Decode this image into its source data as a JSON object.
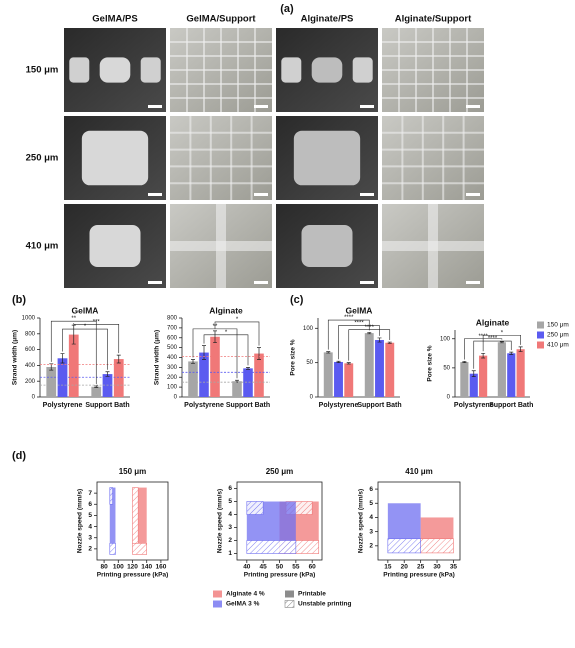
{
  "panels": [
    "(a)",
    "(b)",
    "(c)",
    "(d)"
  ],
  "micrographs": {
    "columns": [
      "GelMA/PS",
      "GelMA/Support",
      "Alginate/PS",
      "Alginate/Support"
    ],
    "rows": [
      "150 μm",
      "250 μm",
      "410 μm"
    ]
  },
  "chart_data": [
    {
      "type": "bar",
      "title": "GelMA",
      "ylabel": "Strand width (μm)",
      "categories": [
        "Polystyrene",
        "Support Bath"
      ],
      "ylim": [
        0,
        1000
      ],
      "yticks": [
        0,
        200,
        400,
        600,
        800,
        1000
      ],
      "reference_lines": [
        150,
        250,
        410
      ],
      "series": [
        {
          "color": "#a6a6a6",
          "values": [
            380,
            130
          ],
          "errors": [
            40,
            10
          ]
        },
        {
          "color": "#5b5bf0",
          "values": [
            490,
            290
          ],
          "errors": [
            60,
            30
          ]
        },
        {
          "color": "#f07878",
          "values": [
            790,
            480
          ],
          "errors": [
            120,
            50
          ]
        }
      ],
      "annotations": [
        {
          "label": "**",
          "from": [
            0,
            0
          ],
          "to": [
            1,
            0
          ],
          "y": 960
        },
        {
          "label": "***",
          "from": [
            0,
            2
          ],
          "to": [
            1,
            2
          ],
          "y": 920
        },
        {
          "label": "*",
          "from": [
            0,
            1
          ],
          "to": [
            1,
            1
          ],
          "y": 860
        }
      ]
    },
    {
      "type": "bar",
      "title": "Alginate",
      "ylabel": "Strand width (μm)",
      "categories": [
        "Polystyrene",
        "Support Bath"
      ],
      "ylim": [
        0,
        800
      ],
      "yticks": [
        0,
        100,
        200,
        300,
        400,
        500,
        600,
        700,
        800
      ],
      "reference_lines": [
        150,
        250,
        410
      ],
      "series": [
        {
          "color": "#a6a6a6",
          "values": [
            360,
            160
          ],
          "errors": [
            20,
            10
          ]
        },
        {
          "color": "#5b5bf0",
          "values": [
            450,
            290
          ],
          "errors": [
            70,
            10
          ]
        },
        {
          "color": "#f07878",
          "values": [
            610,
            440
          ],
          "errors": [
            60,
            60
          ]
        }
      ],
      "annotations": [
        {
          "label": "*",
          "from": [
            0,
            2
          ],
          "to": [
            1,
            2
          ],
          "y": 760
        },
        {
          "label": "**",
          "from": [
            0,
            0
          ],
          "to": [
            1,
            0
          ],
          "y": 690
        },
        {
          "label": "*",
          "from": [
            0,
            1
          ],
          "to": [
            1,
            1
          ],
          "y": 630
        }
      ]
    },
    {
      "type": "bar",
      "title": "GelMA",
      "ylabel": "Pore size %",
      "categories": [
        "Polystyrene",
        "Support Bath"
      ],
      "ylim": [
        0,
        115
      ],
      "yticks": [
        0,
        50,
        100
      ],
      "legend": "right",
      "series": [
        {
          "name": "150 μm",
          "color": "#a6a6a6",
          "values": [
            65,
            93
          ],
          "errors": [
            1,
            1
          ]
        },
        {
          "name": "250 μm",
          "color": "#5b5bf0",
          "values": [
            51,
            83
          ],
          "errors": [
            1,
            3
          ]
        },
        {
          "name": "410 μm",
          "color": "#f07878",
          "values": [
            49,
            79
          ],
          "errors": [
            1,
            1
          ]
        }
      ],
      "annotations": [
        {
          "label": "****",
          "from": [
            0,
            0
          ],
          "to": [
            1,
            0
          ],
          "y": 112
        },
        {
          "label": "****",
          "from": [
            0,
            1
          ],
          "to": [
            1,
            1
          ],
          "y": 104
        },
        {
          "label": "****",
          "from": [
            0,
            2
          ],
          "to": [
            1,
            2
          ],
          "y": 98
        }
      ]
    },
    {
      "type": "bar",
      "title": "Alginate",
      "ylabel": "Pore size %",
      "categories": [
        "Polystyrene",
        "Support Bath"
      ],
      "ylim": [
        0,
        115
      ],
      "yticks": [
        0,
        50,
        100
      ],
      "series": [
        {
          "color": "#a6a6a6",
          "values": [
            60,
            94
          ],
          "errors": [
            1,
            1
          ]
        },
        {
          "color": "#5b5bf0",
          "values": [
            40,
            75
          ],
          "errors": [
            5,
            2
          ]
        },
        {
          "color": "#f07878",
          "values": [
            71,
            82
          ],
          "errors": [
            4,
            4
          ]
        }
      ],
      "annotations": [
        {
          "label": "*",
          "from": [
            0,
            2
          ],
          "to": [
            1,
            2
          ],
          "y": 106
        },
        {
          "label": "****",
          "from": [
            0,
            0
          ],
          "to": [
            1,
            0
          ],
          "y": 100
        },
        {
          "label": "****",
          "from": [
            0,
            1
          ],
          "to": [
            1,
            1
          ],
          "y": 96
        }
      ]
    },
    {
      "type": "region",
      "title": "150 μm",
      "xlabel": "Printing pressure (kPa)",
      "ylabel": "Nozzle speed (mm/s)",
      "xlim": [
        70,
        170
      ],
      "xticks": [
        80,
        100,
        120,
        140,
        160
      ],
      "ylim": [
        1,
        8
      ],
      "yticks": [
        2,
        3,
        4,
        5,
        6,
        7
      ],
      "series": [
        {
          "color": "#f07878",
          "printable": [
            {
              "x": [
                128,
                140
              ],
              "y": [
                2.5,
                7.5
              ]
            }
          ],
          "unstable": [
            {
              "x": [
                120,
                128
              ],
              "y": [
                2.5,
                7.5
              ]
            },
            {
              "x": [
                120,
                140
              ],
              "y": [
                1.5,
                2.5
              ]
            }
          ]
        },
        {
          "color": "#6f6ff0",
          "printable": [
            {
              "x": [
                88,
                96
              ],
              "y": [
                2.5,
                7.5
              ]
            }
          ],
          "unstable": [
            {
              "x": [
                88,
                92
              ],
              "y": [
                6,
                7.5
              ]
            },
            {
              "x": [
                88,
                96
              ],
              "y": [
                1.5,
                2.5
              ]
            }
          ]
        }
      ]
    },
    {
      "type": "region",
      "title": "250 μm",
      "xlabel": "Printing pressure (kPa)",
      "ylabel": "Nozzle speed (mm/s)",
      "xlim": [
        37,
        63
      ],
      "xticks": [
        40,
        45,
        50,
        55,
        60
      ],
      "ylim": [
        0.5,
        6.5
      ],
      "yticks": [
        1,
        2,
        3,
        4,
        5,
        6
      ],
      "legend": "bottom",
      "status_legend": [
        {
          "label": "Printable",
          "color": "#8c8c8c"
        },
        {
          "label": "Unstable printing"
        }
      ],
      "series": [
        {
          "name": "Alginate 4 %",
          "color": "#f07878",
          "printable": [
            {
              "x": [
                50,
                62
              ],
              "y": [
                2,
                5
              ]
            }
          ],
          "unstable": [
            {
              "x": [
                50,
                62
              ],
              "y": [
                1,
                2
              ]
            },
            {
              "x": [
                52,
                60
              ],
              "y": [
                4,
                5
              ]
            }
          ]
        },
        {
          "name": "GelMA 3 %",
          "color": "#6f6ff0",
          "printable": [
            {
              "x": [
                40,
                55
              ],
              "y": [
                2,
                5
              ]
            }
          ],
          "unstable": [
            {
              "x": [
                40,
                45
              ],
              "y": [
                4,
                5
              ]
            },
            {
              "x": [
                40,
                55
              ],
              "y": [
                1,
                2
              ]
            }
          ]
        }
      ]
    },
    {
      "type": "region",
      "title": "410 μm",
      "xlabel": "Printing pressure (kPa)",
      "ylabel": "Nozzle speed (mm/s)",
      "xlim": [
        12,
        37
      ],
      "xticks": [
        15,
        20,
        25,
        30,
        35
      ],
      "ylim": [
        1,
        6.5
      ],
      "yticks": [
        2,
        3,
        4,
        5,
        6
      ],
      "series": [
        {
          "color": "#f07878",
          "printable": [
            {
              "x": [
                25,
                35
              ],
              "y": [
                2.5,
                4
              ]
            }
          ],
          "unstable": [
            {
              "x": [
                25,
                35
              ],
              "y": [
                1.5,
                2.5
              ]
            }
          ]
        },
        {
          "color": "#6f6ff0",
          "printable": [
            {
              "x": [
                15,
                25
              ],
              "y": [
                2.5,
                5
              ]
            }
          ],
          "unstable": [
            {
              "x": [
                15,
                25
              ],
              "y": [
                1.5,
                2.5
              ]
            }
          ]
        }
      ]
    }
  ]
}
